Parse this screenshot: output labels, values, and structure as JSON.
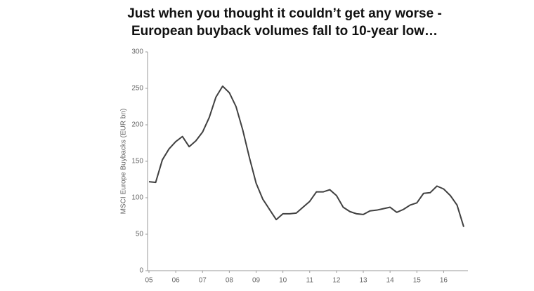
{
  "chart_data": {
    "type": "line",
    "title": [
      "Just when you thought it couldn’t get any worse -",
      "European buyback volumes fall to 10-year low…"
    ],
    "y_label": "MSCI Europe Buybacks (EUR bn)",
    "x": [
      5,
      5.25,
      5.5,
      5.75,
      6,
      6.25,
      6.5,
      6.75,
      7,
      7.25,
      7.5,
      7.75,
      8,
      8.25,
      8.5,
      8.75,
      9,
      9.25,
      9.5,
      9.75,
      10,
      10.25,
      10.5,
      10.75,
      11,
      11.25,
      11.5,
      11.75,
      12,
      12.25,
      12.5,
      12.75,
      13,
      13.25,
      13.5,
      13.75,
      14,
      14.25,
      14.5,
      14.75,
      15,
      15.25,
      15.5,
      15.75,
      16,
      16.25,
      16.5,
      16.75
    ],
    "series": [
      {
        "color": "#404040",
        "values": [
          122,
          121,
          152,
          167,
          177,
          184,
          170,
          178,
          190,
          210,
          238,
          253,
          244,
          225,
          193,
          155,
          120,
          98,
          84,
          70,
          78,
          78,
          79,
          87,
          95,
          108,
          108,
          111,
          103,
          87,
          81,
          78,
          77,
          82,
          83,
          85,
          87,
          80,
          84,
          90,
          93,
          106,
          107,
          116,
          112,
          103,
          90,
          60
        ]
      }
    ],
    "xlim": [
      5,
      16.75
    ],
    "xticks": [
      {
        "value": 5,
        "label": "05"
      },
      {
        "value": 6,
        "label": "06"
      },
      {
        "value": 7,
        "label": "07"
      },
      {
        "value": 8,
        "label": "08"
      },
      {
        "value": 9,
        "label": "09"
      },
      {
        "value": 10,
        "label": "10"
      },
      {
        "value": 11,
        "label": "11"
      },
      {
        "value": 12,
        "label": "12"
      },
      {
        "value": 13,
        "label": "13"
      },
      {
        "value": 14,
        "label": "14"
      },
      {
        "value": 15,
        "label": "15"
      },
      {
        "value": 16,
        "label": "16"
      }
    ],
    "ylim": [
      0,
      300
    ],
    "yticks": [
      0,
      50,
      100,
      150,
      200,
      250,
      300
    ],
    "grid": false
  }
}
